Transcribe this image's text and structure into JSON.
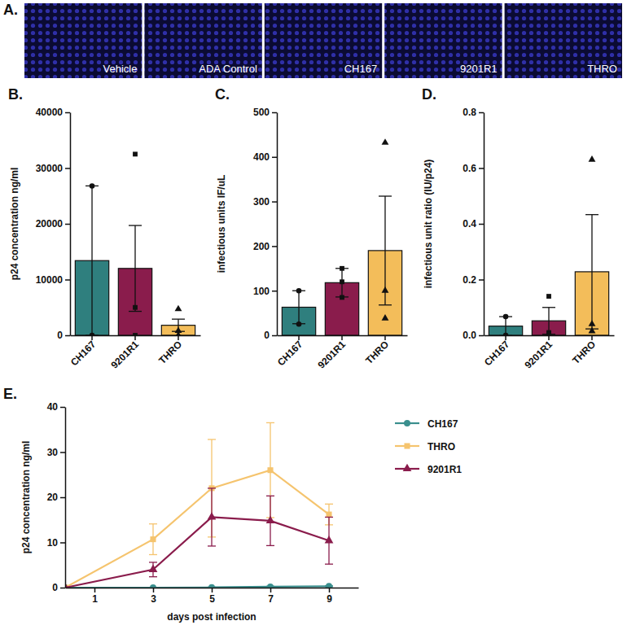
{
  "chart_data": [
    {
      "type": "image",
      "panel_label": "A.",
      "labels": [
        "Vehicle",
        "ADA Control",
        "CH167",
        "9201R1",
        "THRO"
      ]
    },
    {
      "type": "bar",
      "panel_label": "B.",
      "y_label": "p24 concentration ng/ml",
      "categories": [
        "CH167",
        "9201R1",
        "THRO"
      ],
      "values": [
        13400,
        12000,
        1800
      ],
      "errors": [
        13400,
        7700,
        1100
      ],
      "points": [
        [
          26800,
          0
        ],
        [
          32500,
          5000,
          0
        ],
        [
          4700,
          800,
          0
        ]
      ],
      "colors": [
        "#2f7f7e",
        "#8a1c4c",
        "#f3bd5a"
      ],
      "ylim": [
        0,
        40000
      ],
      "yticks": [
        0,
        10000,
        20000,
        30000,
        40000
      ]
    },
    {
      "type": "bar",
      "panel_label": "C.",
      "y_label": "infectious units IF/uL",
      "categories": [
        "CH167",
        "9201R1",
        "THRO"
      ],
      "values": [
        63,
        118,
        190
      ],
      "errors": [
        37,
        32,
        122
      ],
      "points": [
        [
          100,
          25
        ],
        [
          150,
          120,
          85
        ],
        [
          432,
          100,
          38
        ]
      ],
      "colors": [
        "#2f7f7e",
        "#8a1c4c",
        "#f3bd5a"
      ],
      "ylim": [
        0,
        500
      ],
      "yticks": [
        0,
        100,
        200,
        300,
        400,
        500
      ]
    },
    {
      "type": "bar",
      "panel_label": "D.",
      "y_label": "infectious unit ratio (IU/p24)",
      "categories": [
        "CH167",
        "9201R1",
        "THRO"
      ],
      "values": [
        0.033,
        0.052,
        0.228
      ],
      "errors": [
        0.034,
        0.048,
        0.205
      ],
      "points": [
        [
          0.067,
          0
        ],
        [
          0.14,
          0.01,
          0.005
        ],
        [
          0.63,
          0.04,
          0.015
        ]
      ],
      "colors": [
        "#2f7f7e",
        "#8a1c4c",
        "#f3bd5a"
      ],
      "ylim": [
        0,
        0.8
      ],
      "yticks": [
        {
          "value": 0,
          "label": "0.0"
        },
        0.2,
        0.4,
        0.6,
        0.8
      ]
    },
    {
      "type": "line",
      "panel_label": "E.",
      "x_label": "days post infection",
      "y_label": "p24 concentration ng/ml",
      "x": [
        0,
        3,
        5,
        7,
        9
      ],
      "xlim": [
        0,
        10
      ],
      "xticks": [
        1,
        3,
        5,
        7,
        9
      ],
      "ylim": [
        0,
        40
      ],
      "yticks": [
        0,
        10,
        20,
        30,
        40
      ],
      "legend": "right",
      "series": [
        {
          "name": "CH167",
          "color": "#3a8f8e",
          "marker": "circle",
          "values": [
            0,
            0,
            0.05,
            0.2,
            0.3
          ],
          "errors": [
            0,
            0,
            0.05,
            0.1,
            0.1
          ]
        },
        {
          "name": "THRO",
          "color": "#f5c46e",
          "marker": "square",
          "values": [
            0,
            10.7,
            22,
            26,
            16.2
          ],
          "errors": [
            0,
            3.4,
            10.8,
            10.5,
            2.3
          ]
        },
        {
          "name": "9201R1",
          "color": "#8a1c4c",
          "marker": "triangle",
          "values": [
            0,
            4,
            15.6,
            14.8,
            10.4
          ],
          "errors": [
            0,
            1.6,
            6.4,
            5.5,
            5.2
          ]
        }
      ]
    }
  ]
}
